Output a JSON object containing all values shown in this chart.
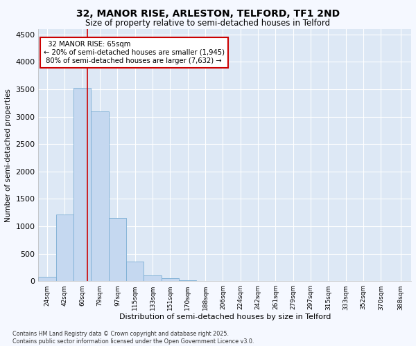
{
  "title_line1": "32, MANOR RISE, ARLESTON, TELFORD, TF1 2ND",
  "title_line2": "Size of property relative to semi-detached houses in Telford",
  "xlabel": "Distribution of semi-detached houses by size in Telford",
  "ylabel": "Number of semi-detached properties",
  "bin_edges": [
    15,
    33,
    51,
    69,
    87,
    105,
    123,
    141,
    159,
    177,
    195,
    213,
    231,
    249,
    267,
    285,
    303,
    321,
    339,
    357,
    375,
    397
  ],
  "bin_labels": [
    "24sqm",
    "42sqm",
    "60sqm",
    "79sqm",
    "97sqm",
    "115sqm",
    "133sqm",
    "151sqm",
    "170sqm",
    "188sqm",
    "206sqm",
    "224sqm",
    "242sqm",
    "261sqm",
    "279sqm",
    "297sqm",
    "315sqm",
    "333sqm",
    "352sqm",
    "370sqm",
    "388sqm"
  ],
  "bar_heights": [
    75,
    1220,
    3520,
    3100,
    1150,
    360,
    100,
    55,
    20,
    8,
    5,
    2,
    1,
    0,
    0,
    0,
    0,
    0,
    0,
    0,
    0
  ],
  "bar_color": "#c5d8f0",
  "bar_edge_color": "#7aadd4",
  "property_size": 65,
  "property_label": "32 MANOR RISE: 65sqm",
  "pct_smaller": 20,
  "n_smaller": "1,945",
  "pct_larger": 80,
  "n_larger": "7,632",
  "vline_color": "#cc0000",
  "annotation_box_color": "#cc0000",
  "ylim": [
    0,
    4600
  ],
  "yticks": [
    0,
    500,
    1000,
    1500,
    2000,
    2500,
    3000,
    3500,
    4000,
    4500
  ],
  "bg_color": "#f5f8ff",
  "plot_bg_color": "#dde8f5",
  "grid_color": "#ffffff",
  "footnote_line1": "Contains HM Land Registry data © Crown copyright and database right 2025.",
  "footnote_line2": "Contains public sector information licensed under the Open Government Licence v3.0."
}
